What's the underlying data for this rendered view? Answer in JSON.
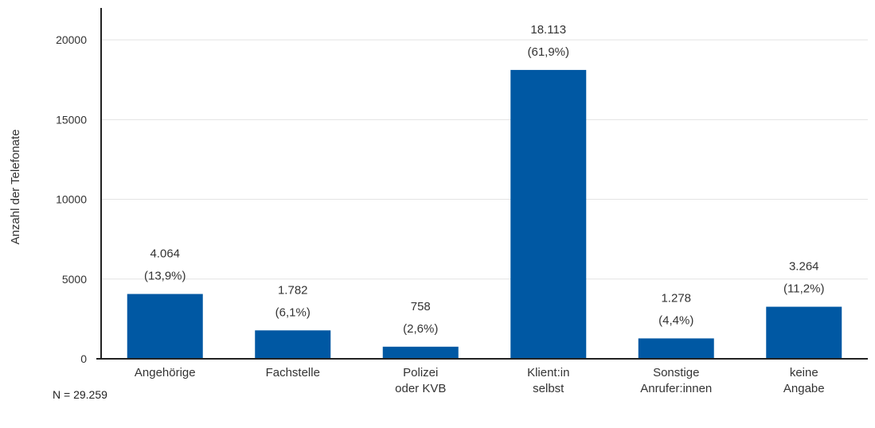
{
  "chart_data": {
    "type": "bar",
    "title": "",
    "xlabel": "",
    "ylabel": "Anzahl der Telefonate",
    "ylim": [
      0,
      22000
    ],
    "yticks": [
      0,
      5000,
      10000,
      15000,
      20000
    ],
    "grid": true,
    "bar_color": "#0058a3",
    "categories": [
      [
        "Angehörige"
      ],
      [
        "Fachstelle"
      ],
      [
        "Polizei",
        "oder KVB"
      ],
      [
        "Klient:in",
        "selbst"
      ],
      [
        "Sonstige",
        "Anrufer:innen"
      ],
      [
        "keine",
        "Angabe"
      ]
    ],
    "values": [
      4064,
      1782,
      758,
      18113,
      1278,
      3264
    ],
    "value_labels": [
      "4.064",
      "1.782",
      "758",
      "18.113",
      "1.278",
      "3.264"
    ],
    "percent_labels": [
      "(13,9%)",
      "(6,1%)",
      "(2,6%)",
      "(61,9%)",
      "(4,4%)",
      "(11,2%)"
    ]
  },
  "footnote": "N = 29.259"
}
